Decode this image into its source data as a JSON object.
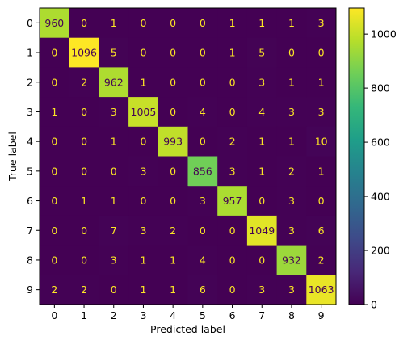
{
  "chart_data": {
    "type": "heatmap",
    "title": "",
    "xlabel": "Predicted label",
    "ylabel": "True label",
    "x_categories": [
      "0",
      "1",
      "2",
      "3",
      "4",
      "5",
      "6",
      "7",
      "8",
      "9"
    ],
    "y_categories": [
      "0",
      "1",
      "2",
      "3",
      "4",
      "5",
      "6",
      "7",
      "8",
      "9"
    ],
    "values": [
      [
        960,
        0,
        1,
        0,
        0,
        0,
        1,
        1,
        1,
        3
      ],
      [
        0,
        1096,
        5,
        0,
        0,
        0,
        1,
        5,
        0,
        0
      ],
      [
        0,
        2,
        962,
        1,
        0,
        0,
        0,
        3,
        1,
        1
      ],
      [
        1,
        0,
        3,
        1005,
        0,
        4,
        0,
        4,
        3,
        3
      ],
      [
        0,
        0,
        1,
        0,
        993,
        0,
        2,
        1,
        1,
        10
      ],
      [
        0,
        0,
        0,
        3,
        0,
        856,
        3,
        1,
        2,
        1
      ],
      [
        0,
        1,
        1,
        0,
        0,
        3,
        957,
        0,
        3,
        0
      ],
      [
        0,
        0,
        7,
        3,
        2,
        0,
        0,
        1049,
        3,
        6
      ],
      [
        0,
        0,
        3,
        1,
        1,
        4,
        0,
        0,
        932,
        2
      ],
      [
        2,
        2,
        0,
        1,
        1,
        6,
        0,
        3,
        3,
        1063
      ]
    ],
    "colormap": "viridis",
    "colorbar": {
      "range": [
        0,
        1096
      ],
      "ticks": [
        0,
        200,
        400,
        600,
        800,
        1000
      ]
    },
    "annotation_colors": {
      "on_dark": "#fde725",
      "on_light": "#440154"
    }
  }
}
